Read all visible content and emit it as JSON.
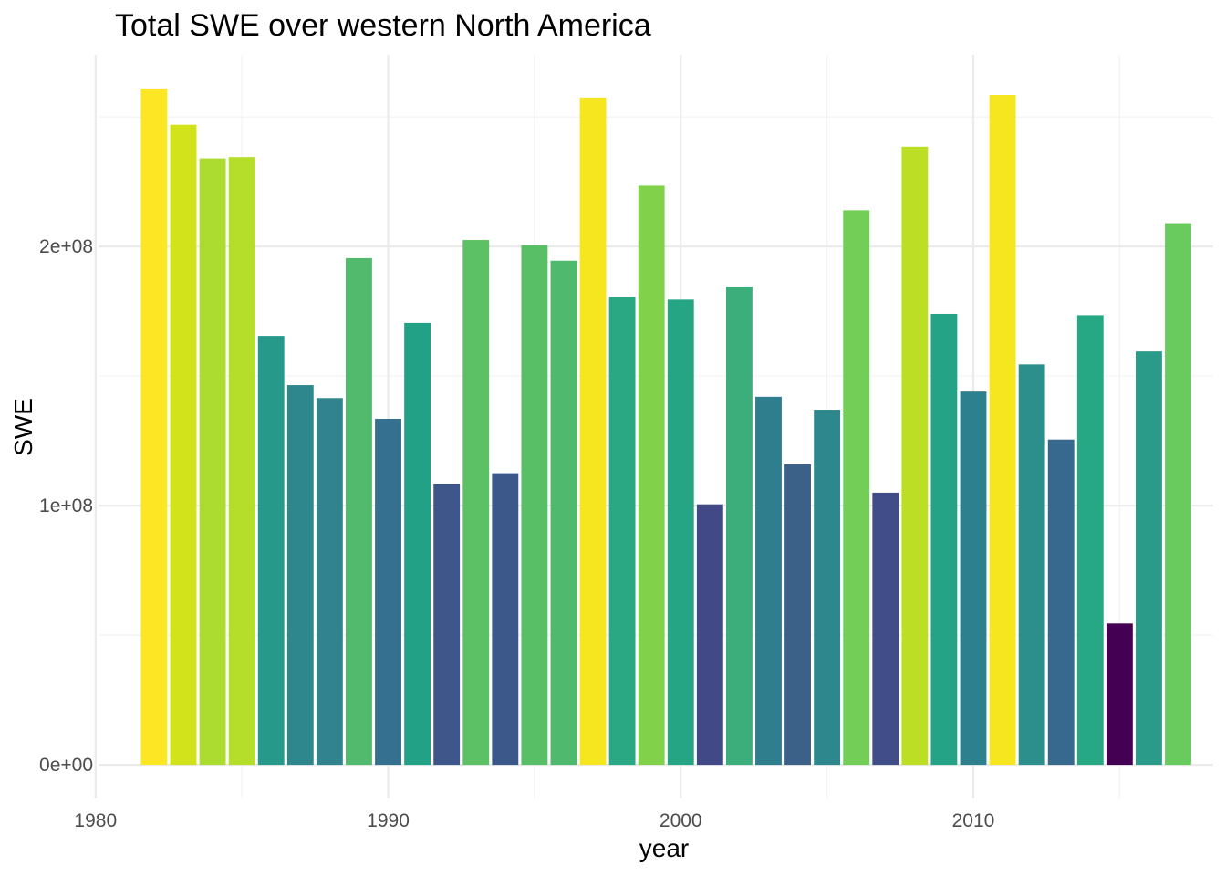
{
  "chart_data": {
    "type": "bar",
    "title": "Total SWE over western North America",
    "xlabel": "year",
    "ylabel": "SWE",
    "x": [
      1982,
      1983,
      1984,
      1985,
      1986,
      1987,
      1988,
      1989,
      1990,
      1991,
      1992,
      1993,
      1994,
      1995,
      1996,
      1997,
      1998,
      1999,
      2000,
      2001,
      2002,
      2003,
      2004,
      2005,
      2006,
      2007,
      2008,
      2009,
      2010,
      2011,
      2012,
      2013,
      2014,
      2015,
      2016,
      2017
    ],
    "values": [
      261000000.0,
      247000000.0,
      234000000.0,
      234500000.0,
      165500000.0,
      146500000.0,
      141500000.0,
      195500000.0,
      133500000.0,
      170500000.0,
      108500000.0,
      202500000.0,
      112500000.0,
      200500000.0,
      194500000.0,
      257500000.0,
      180500000.0,
      223500000.0,
      179500000.0,
      100500000.0,
      184500000.0,
      142000000.0,
      116000000.0,
      137000000.0,
      214000000.0,
      105000000.0,
      238500000.0,
      174000000.0,
      144000000.0,
      258500000.0,
      154500000.0,
      125500000.0,
      173500000.0,
      54500000.0,
      159500000.0,
      209000000.0
    ],
    "fill_colors": [
      "#FDE725",
      "#D2E21B",
      "#ADDC30",
      "#B5DE2B",
      "#26998B",
      "#2E878D",
      "#31838E",
      "#52BA6C",
      "#35708E",
      "#22A186",
      "#3E5689",
      "#5CC164",
      "#3C578A",
      "#58BF66",
      "#4FB96D",
      "#F5E61F",
      "#2AA883",
      "#81D24A",
      "#26A585",
      "#414A86",
      "#3CAE7C",
      "#2E7E8E",
      "#3C6189",
      "#2D878D",
      "#73CE58",
      "#414D86",
      "#BCDF26",
      "#24A387",
      "#2D808D",
      "#F5E61F",
      "#2D8F8C",
      "#36698D",
      "#27A885",
      "#440154",
      "#2A9A89",
      "#69CA5D"
    ],
    "x_ticks": [
      1980,
      1990,
      2000,
      2010
    ],
    "x_tick_labels": [
      "1980",
      "1990",
      "2000",
      "2010"
    ],
    "y_ticks": [
      0,
      100000000,
      200000000
    ],
    "y_tick_labels": [
      "0e+00",
      "1e+08",
      "2e+08"
    ],
    "y_minor_ticks": [
      50000000,
      150000000,
      250000000
    ],
    "x_minor_ticks": [
      1985,
      1995,
      2005,
      2015
    ],
    "xlim": [
      1980.1,
      2018.2
    ],
    "ylim": [
      -13000000.0,
      274000000.0
    ],
    "legend": "none",
    "grid": true
  }
}
